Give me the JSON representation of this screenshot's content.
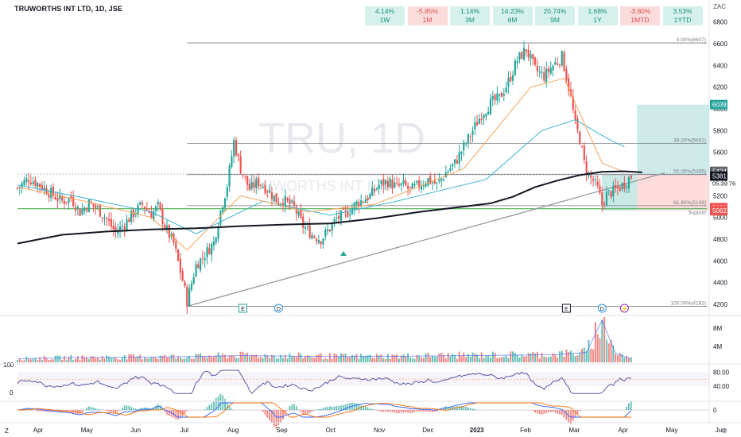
{
  "header": {
    "ticker": "TRUWORTHS INT LTD, 1D, JSE",
    "currency": "ZAC",
    "performance": [
      {
        "value": "4.14%",
        "period": "1W",
        "positive": true
      },
      {
        "value": "-5.85%",
        "period": "1M",
        "positive": false
      },
      {
        "value": "1.14%",
        "period": "3M",
        "positive": true
      },
      {
        "value": "14.23%",
        "period": "6M",
        "positive": true
      },
      {
        "value": "20.74%",
        "period": "9M",
        "positive": true
      },
      {
        "value": "1.68%",
        "period": "1Y",
        "positive": true
      },
      {
        "value": "-3.80%",
        "period": "1MTD",
        "positive": false
      },
      {
        "value": "3.53%",
        "period": "1YTD",
        "positive": true
      }
    ]
  },
  "watermark": {
    "symbol": "TRU, 1D",
    "name": "TRUWORTHS INT LTD"
  },
  "chart_data": {
    "type": "candlestick",
    "price_axis": {
      "ticks": [
        "6800",
        "6600",
        "6400",
        "6200",
        "6000",
        "5800",
        "5600",
        "5400",
        "5200",
        "5000",
        "4800",
        "4600",
        "4400",
        "4200"
      ],
      "ylim": [
        4140,
        6900
      ]
    },
    "time_axis": [
      "Apr",
      "May",
      "Jun",
      "Jul",
      "Aug",
      "Sep",
      "Oct",
      "Nov",
      "Dec",
      "2023",
      "Feb",
      "Mar",
      "Apr",
      "May",
      "Jun"
    ],
    "close_path": [
      [
        0,
        5270
      ],
      [
        5,
        5360
      ],
      [
        10,
        5300
      ],
      [
        15,
        5220
      ],
      [
        20,
        5150
      ],
      [
        24,
        5180
      ],
      [
        28,
        5050
      ],
      [
        32,
        5130
      ],
      [
        36,
        5080
      ],
      [
        40,
        4980
      ],
      [
        44,
        4860
      ],
      [
        48,
        4940
      ],
      [
        52,
        5040
      ],
      [
        56,
        5120
      ],
      [
        60,
        5030
      ],
      [
        63,
        5100
      ],
      [
        66,
        4920
      ],
      [
        70,
        4760
      ],
      [
        74,
        4420
      ],
      [
        76,
        4230
      ],
      [
        80,
        4560
      ],
      [
        84,
        4660
      ],
      [
        88,
        4770
      ],
      [
        91,
        5060
      ],
      [
        94,
        5300
      ],
      [
        97,
        5700
      ],
      [
        100,
        5450
      ],
      [
        104,
        5260
      ],
      [
        108,
        5330
      ],
      [
        112,
        5260
      ],
      [
        116,
        5160
      ],
      [
        120,
        5150
      ],
      [
        124,
        5090
      ],
      [
        128,
        4920
      ],
      [
        132,
        4840
      ],
      [
        136,
        4800
      ],
      [
        140,
        4900
      ],
      [
        143,
        4990
      ],
      [
        147,
        5030
      ],
      [
        152,
        5130
      ],
      [
        158,
        5200
      ],
      [
        162,
        5300
      ],
      [
        166,
        5330
      ],
      [
        170,
        5280
      ],
      [
        173,
        5300
      ],
      [
        176,
        5250
      ],
      [
        180,
        5300
      ],
      [
        184,
        5350
      ],
      [
        188,
        5300
      ],
      [
        192,
        5410
      ],
      [
        196,
        5500
      ],
      [
        200,
        5650
      ],
      [
        204,
        5800
      ],
      [
        208,
        5950
      ],
      [
        212,
        6050
      ],
      [
        216,
        6100
      ],
      [
        220,
        6250
      ],
      [
        224,
        6450
      ],
      [
        228,
        6550
      ],
      [
        232,
        6360
      ],
      [
        236,
        6300
      ],
      [
        240,
        6400
      ],
      [
        244,
        6480
      ],
      [
        246,
        6300
      ],
      [
        248,
        6100
      ],
      [
        250,
        5850
      ],
      [
        252,
        5720
      ],
      [
        254,
        5500
      ],
      [
        256,
        5380
      ],
      [
        258,
        5340
      ],
      [
        260,
        5260
      ],
      [
        262,
        5120
      ],
      [
        264,
        5210
      ],
      [
        268,
        5250
      ],
      [
        272,
        5310
      ],
      [
        275,
        5381
      ]
    ],
    "volume_path": [
      [
        0,
        0.8
      ],
      [
        20,
        1.0
      ],
      [
        40,
        1.1
      ],
      [
        60,
        1.2
      ],
      [
        80,
        1.3
      ],
      [
        100,
        1.5
      ],
      [
        120,
        1.4
      ],
      [
        140,
        1.3
      ],
      [
        160,
        1.3
      ],
      [
        180,
        1.4
      ],
      [
        200,
        1.5
      ],
      [
        220,
        1.6
      ],
      [
        240,
        1.7
      ],
      [
        255,
        2.2
      ],
      [
        262,
        9.5
      ],
      [
        268,
        2.0
      ],
      [
        275,
        0.8
      ]
    ],
    "x_max": 310,
    "current_price": 5381,
    "countdown": "05:39:76",
    "price_labels": [
      {
        "value": 6039,
        "text": "6039",
        "color": "#26a69a"
      },
      {
        "value": 5424,
        "text": "5424",
        "color": "#5d6168"
      },
      {
        "value": 5381,
        "text": "5381",
        "color": "#131722"
      },
      {
        "value": 5090,
        "text": "5090",
        "color": "#ef5350"
      },
      {
        "value": 5062,
        "text": "5062",
        "color": "#ef5350"
      }
    ],
    "fib_levels": [
      {
        "label": "0.00%(6607)",
        "value": 6607
      },
      {
        "label": "38.20%(5681)",
        "value": 5681
      },
      {
        "label": "50.00%(5395)",
        "value": 5395
      },
      {
        "label": "61.80%(5108)",
        "value": 5108
      },
      {
        "label": "100.00%(4182)",
        "value": 4182
      }
    ],
    "fib_x_range": [
      76,
      310
    ],
    "support": {
      "label": "Support",
      "value": 5095
    },
    "trendline": {
      "from": [
        76,
        4182
      ],
      "to": [
        290,
        5410
      ]
    },
    "long_position": {
      "x_start": 283,
      "x_end": 310,
      "entry": 5395,
      "target": 6039,
      "stop": 5062
    },
    "sma200_path": [
      [
        0,
        4760
      ],
      [
        20,
        4840
      ],
      [
        40,
        4870
      ],
      [
        60,
        4890
      ],
      [
        80,
        4900
      ],
      [
        100,
        4920
      ],
      [
        120,
        4935
      ],
      [
        140,
        4945
      ],
      [
        160,
        4990
      ],
      [
        180,
        5050
      ],
      [
        200,
        5100
      ],
      [
        212,
        5130
      ],
      [
        222,
        5190
      ],
      [
        232,
        5280
      ],
      [
        242,
        5340
      ],
      [
        252,
        5390
      ],
      [
        262,
        5420
      ],
      [
        272,
        5425
      ],
      [
        280,
        5415
      ]
    ],
    "ema_orange_path": [
      [
        0,
        5280
      ],
      [
        30,
        5150
      ],
      [
        60,
        5000
      ],
      [
        76,
        4700
      ],
      [
        100,
        5200
      ],
      [
        130,
        5050
      ],
      [
        160,
        5120
      ],
      [
        200,
        5450
      ],
      [
        230,
        6200
      ],
      [
        245,
        6280
      ],
      [
        262,
        5500
      ],
      [
        272,
        5420
      ]
    ],
    "ema_blue_path": [
      [
        0,
        5300
      ],
      [
        30,
        5180
      ],
      [
        60,
        5050
      ],
      [
        80,
        4850
      ],
      [
        110,
        5150
      ],
      [
        140,
        5020
      ],
      [
        170,
        5150
      ],
      [
        210,
        5350
      ],
      [
        235,
        5800
      ],
      [
        250,
        5900
      ],
      [
        265,
        5720
      ],
      [
        272,
        5650
      ]
    ],
    "events": [
      {
        "x": 101,
        "symbol": "E",
        "style": "square"
      },
      {
        "x": 117,
        "symbol": "D",
        "style": "circle"
      },
      {
        "x": 246,
        "symbol": "E",
        "style": "square"
      },
      {
        "x": 262,
        "symbol": "D",
        "style": "circle"
      },
      {
        "x": 272,
        "symbol": "⚡",
        "style": "flash"
      }
    ],
    "volume_axis": [
      "8M",
      "4M"
    ],
    "rsi": {
      "axis": [
        "80.00",
        "40.00"
      ],
      "left_labels": [
        "100",
        "0"
      ],
      "level_top": 80,
      "level_bottom": 40
    },
    "macd": {
      "axis": [
        "0"
      ]
    }
  },
  "left_glyphs": [
    "Z",
    "⚙"
  ],
  "colors": {
    "up": "#26a69a",
    "down": "#ef5350",
    "sma": "#131722",
    "ema_orange": "#f7a35c",
    "ema_blue": "#3bb2d0",
    "rsi": "#5b57a6",
    "macd": "#2962ff",
    "signal": "#ff6d00"
  }
}
